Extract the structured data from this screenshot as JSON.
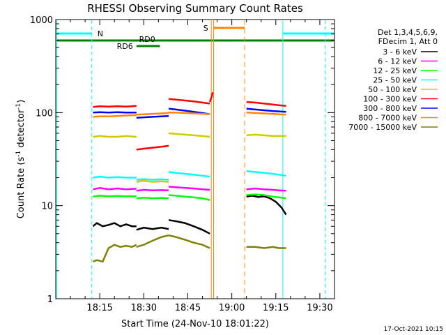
{
  "chart_data": {
    "type": "line",
    "title": "RHESSI Observing Summary Count Rates",
    "xlabel": "Start Time (24-Nov-10 18:01:22)",
    "ylabel_prefix": "Count Rate (s",
    "ylabel_sup1": "-1",
    "ylabel_mid": " detector",
    "ylabel_sup2": "-1",
    "ylabel_suffix": ")",
    "yscale": "log",
    "ylim": [
      1,
      1000
    ],
    "xlim_minutes": [
      0,
      95
    ],
    "x_ticks": [
      {
        "m": 15,
        "label": "18:15"
      },
      {
        "m": 30,
        "label": "18:30"
      },
      {
        "m": 45,
        "label": "18:45"
      },
      {
        "m": 60,
        "label": "19:00"
      },
      {
        "m": 75,
        "label": "19:15"
      },
      {
        "m": 90,
        "label": "19:30"
      }
    ],
    "y_ticks": [
      {
        "v": 1,
        "label": "1"
      },
      {
        "v": 10,
        "label": "10"
      },
      {
        "v": 100,
        "label": "100"
      },
      {
        "v": 1000,
        "label": "1000"
      }
    ],
    "legend_header": [
      "Det 1,3,4,5,6,9,",
      "FDecim 1, Att 0"
    ],
    "legend_placement": "right",
    "series": [
      {
        "name": "3 - 6 keV",
        "color": "#000000",
        "segments": [
          {
            "x": [
              12.7,
              14,
              16,
              18,
              20,
              22,
              24,
              26,
              27.5
            ],
            "y": [
              6.0,
              6.5,
              6.0,
              6.2,
              6.5,
              6.0,
              6.3,
              6.0,
              6.0
            ]
          },
          {
            "x": [
              27.5,
              30,
              33,
              36,
              38.5
            ],
            "y": [
              5.5,
              5.8,
              5.6,
              5.8,
              5.6
            ]
          },
          {
            "x": [
              38.5,
              41,
              44,
              47,
              50,
              52.5
            ],
            "y": [
              7.0,
              6.8,
              6.5,
              6.0,
              5.5,
              5.0
            ]
          },
          {
            "x": [
              65,
              67,
              69,
              71,
              73,
              75,
              77,
              78.5
            ],
            "y": [
              12.5,
              12.8,
              12.4,
              12.6,
              12.0,
              11.0,
              9.5,
              8.0
            ]
          }
        ]
      },
      {
        "name": "6 - 12 keV",
        "color": "#ff00ff",
        "segments": [
          {
            "x": [
              12.7,
              15,
              18,
              21,
              24,
              27.5
            ],
            "y": [
              15.0,
              15.5,
              15.0,
              15.3,
              15.0,
              15.2
            ]
          },
          {
            "x": [
              27.5,
              30,
              33,
              36,
              38.5
            ],
            "y": [
              14.5,
              14.8,
              14.6,
              14.7,
              14.6
            ]
          },
          {
            "x": [
              38.5,
              41,
              44,
              47,
              50,
              52.5
            ],
            "y": [
              16.0,
              15.8,
              15.5,
              15.3,
              15.0,
              14.8
            ]
          },
          {
            "x": [
              65,
              68,
              71,
              74,
              76,
              78.5
            ],
            "y": [
              15.0,
              15.3,
              15.0,
              14.8,
              14.6,
              14.5
            ]
          }
        ]
      },
      {
        "name": "12 - 25 keV",
        "color": "#00ff00",
        "segments": [
          {
            "x": [
              12.7,
              15,
              18,
              21,
              24,
              27.5
            ],
            "y": [
              12.5,
              12.8,
              12.6,
              12.7,
              12.6,
              12.6
            ]
          },
          {
            "x": [
              27.5,
              30,
              33,
              36,
              38.5
            ],
            "y": [
              12.0,
              12.2,
              12.0,
              12.1,
              12.0
            ]
          },
          {
            "x": [
              38.5,
              41,
              44,
              47,
              50,
              52.5
            ],
            "y": [
              13.0,
              12.8,
              12.5,
              12.3,
              12.0,
              11.5
            ]
          },
          {
            "x": [
              65,
              68,
              71,
              74,
              76,
              78.5
            ],
            "y": [
              13.0,
              13.2,
              13.0,
              12.5,
              12.3,
              12.0
            ]
          }
        ]
      },
      {
        "name": "25 - 50 keV",
        "color": "#00ffff",
        "segments": [
          {
            "x": [
              12.7,
              15,
              18,
              21,
              24,
              27.5
            ],
            "y": [
              20.0,
              20.5,
              20.0,
              20.3,
              20.0,
              20.0
            ]
          },
          {
            "x": [
              27.5,
              30,
              33,
              36,
              38.5
            ],
            "y": [
              19.0,
              19.3,
              19.0,
              19.2,
              19.0
            ]
          },
          {
            "x": [
              38.5,
              41,
              44,
              47,
              50,
              52.5
            ],
            "y": [
              23.0,
              22.5,
              22.0,
              21.5,
              21.0,
              20.5
            ]
          },
          {
            "x": [
              65,
              68,
              71,
              74,
              76,
              78.5
            ],
            "y": [
              23.5,
              23.0,
              22.5,
              22.0,
              21.5,
              21.0
            ]
          }
        ]
      },
      {
        "name": "50 - 100 keV",
        "color": "#cccc00",
        "segments": [
          {
            "x": [
              12.7,
              15,
              18,
              21,
              24,
              27.5
            ],
            "y": [
              55,
              56,
              55,
              55,
              56,
              55
            ]
          },
          {
            "x": [
              27.5,
              30,
              33,
              36,
              38.5
            ],
            "y": [
              18.0,
              18.5,
              18.0,
              18.3,
              18.0
            ]
          },
          {
            "x": [
              38.5,
              41,
              44,
              47,
              50,
              52.5
            ],
            "y": [
              60,
              59,
              58,
              57,
              56,
              55
            ]
          },
          {
            "x": [
              65,
              68,
              71,
              74,
              76,
              78.5
            ],
            "y": [
              57,
              58,
              57,
              56,
              56,
              56
            ]
          }
        ]
      },
      {
        "name": "100 - 300 keV",
        "color": "#ff0000",
        "segments": [
          {
            "x": [
              12.7,
              15,
              18,
              21,
              24,
              27.5
            ],
            "y": [
              115,
              117,
              116,
              117,
              116,
              118
            ]
          },
          {
            "x": [
              27.5,
              30,
              33,
              36,
              38.5
            ],
            "y": [
              40,
              41,
              42,
              43,
              44
            ]
          },
          {
            "x": [
              38.5,
              41,
              44,
              47,
              50,
              52.5
            ],
            "y": [
              140,
              138,
              135,
              132,
              128,
              125
            ]
          },
          {
            "x": [
              52.5,
              53.2,
              53.5
            ],
            "y": [
              130,
              150,
              165
            ]
          },
          {
            "x": [
              65,
              68,
              71,
              74,
              76,
              78.5
            ],
            "y": [
              130,
              128,
              125,
              122,
              120,
              118
            ]
          }
        ]
      },
      {
        "name": "300 - 800 keV",
        "color": "#0000ff",
        "segments": [
          {
            "x": [
              12.7,
              15,
              18,
              21,
              24,
              27.5
            ],
            "y": [
              100,
              101,
              100,
              101,
              100,
              100
            ]
          },
          {
            "x": [
              27.5,
              30,
              33,
              36,
              38.5
            ],
            "y": [
              88,
              89,
              90,
              91,
              92
            ]
          },
          {
            "x": [
              38.5,
              41,
              44,
              47,
              50,
              52.5
            ],
            "y": [
              110,
              108,
              105,
              102,
              99,
              96
            ]
          },
          {
            "x": [
              65,
              68,
              71,
              74,
              76,
              78.5
            ],
            "y": [
              110,
              108,
              106,
              104,
              103,
              102
            ]
          }
        ]
      },
      {
        "name": "800 - 7000 keV",
        "color": "#ff8800",
        "segments": [
          {
            "x": [
              12.7,
              15,
              18,
              21,
              24,
              27.5
            ],
            "y": [
              90,
              91,
              91,
              92,
              93,
              94
            ]
          },
          {
            "x": [
              27.5,
              30,
              33,
              36,
              38.5
            ],
            "y": [
              95,
              96,
              97,
              98,
              99
            ]
          },
          {
            "x": [
              38.5,
              41,
              44,
              47,
              50,
              52.5
            ],
            "y": [
              100,
              100,
              99,
              98,
              97,
              96
            ]
          },
          {
            "x": [
              65,
              68,
              71,
              74,
              76,
              78.5
            ],
            "y": [
              100,
              99,
              98,
              97,
              96,
              95
            ]
          }
        ]
      },
      {
        "name": "7000 - 15000 keV",
        "color": "#808000",
        "segments": [
          {
            "x": [
              12.7,
              14,
              16,
              18,
              20,
              22,
              24,
              26,
              27.5
            ],
            "y": [
              2.5,
              2.6,
              2.5,
              3.5,
              3.8,
              3.6,
              3.7,
              3.6,
              3.8
            ]
          },
          {
            "x": [
              27.5,
              30,
              33,
              36,
              38.5
            ],
            "y": [
              3.6,
              3.8,
              4.2,
              4.6,
              4.8
            ]
          },
          {
            "x": [
              38.5,
              41,
              44,
              47,
              50,
              52.5
            ],
            "y": [
              4.8,
              4.6,
              4.3,
              4.0,
              3.8,
              3.5
            ]
          },
          {
            "x": [
              65,
              68,
              71,
              74,
              76,
              78.5
            ],
            "y": [
              3.6,
              3.6,
              3.5,
              3.6,
              3.5,
              3.5
            ]
          }
        ]
      }
    ],
    "flag_labels": {
      "N": "N",
      "S": "S",
      "RD0": "RD0",
      "RD6": "RD6"
    },
    "timestamp": "17-Oct-2021 10:15"
  }
}
